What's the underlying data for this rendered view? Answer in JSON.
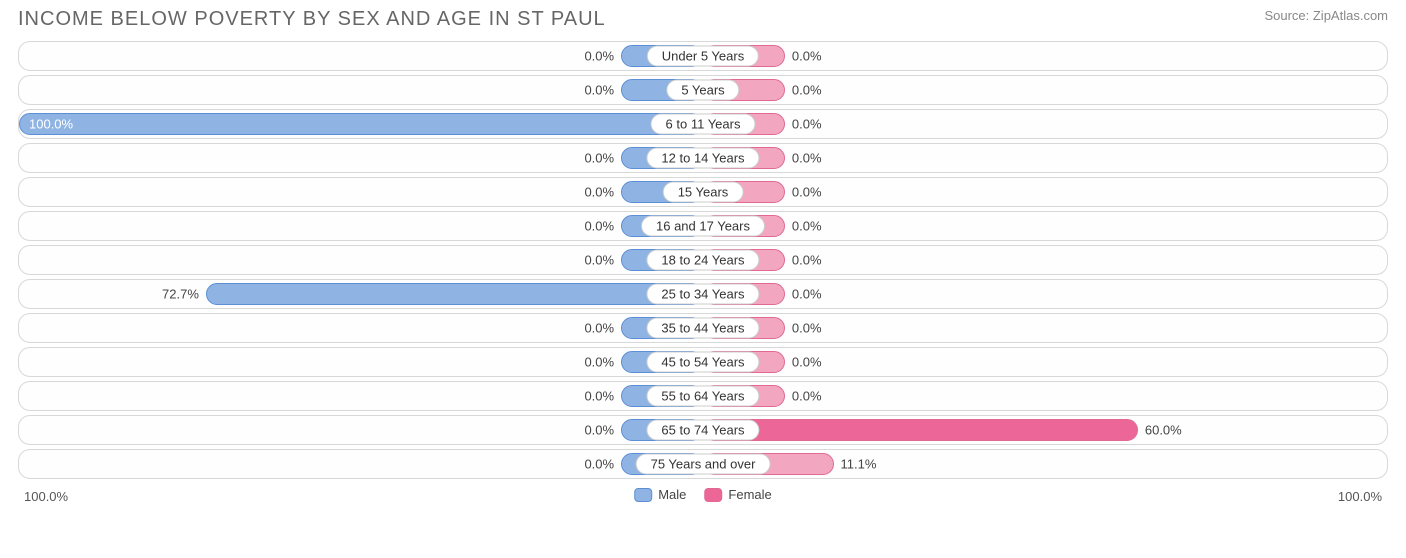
{
  "title": "INCOME BELOW POVERTY BY SEX AND AGE IN ST PAUL",
  "source": "Source: ZipAtlas.com",
  "axis_label_left": "100.0%",
  "axis_label_right": "100.0%",
  "legend": {
    "male": "Male",
    "female": "Female"
  },
  "colors": {
    "male_fill": "#8fb4e3",
    "male_border": "#5a8fd6",
    "female_fill": "#f3a6c0",
    "female_border": "#e06a92",
    "female_highlight": "#ec6698",
    "row_border": "#d8d8d8",
    "text": "#555555",
    "title_text": "#666666"
  },
  "chart": {
    "type": "diverging-bar",
    "default_bar_extent_pct": 12,
    "label_pill_half_width_pct": 9,
    "rows": [
      {
        "category": "Under 5 Years",
        "male": 0.0,
        "female": 0.0
      },
      {
        "category": "5 Years",
        "male": 0.0,
        "female": 0.0
      },
      {
        "category": "6 to 11 Years",
        "male": 100.0,
        "female": 0.0
      },
      {
        "category": "12 to 14 Years",
        "male": 0.0,
        "female": 0.0
      },
      {
        "category": "15 Years",
        "male": 0.0,
        "female": 0.0
      },
      {
        "category": "16 and 17 Years",
        "male": 0.0,
        "female": 0.0
      },
      {
        "category": "18 to 24 Years",
        "male": 0.0,
        "female": 0.0
      },
      {
        "category": "25 to 34 Years",
        "male": 72.7,
        "female": 0.0
      },
      {
        "category": "35 to 44 Years",
        "male": 0.0,
        "female": 0.0
      },
      {
        "category": "45 to 54 Years",
        "male": 0.0,
        "female": 0.0
      },
      {
        "category": "55 to 64 Years",
        "male": 0.0,
        "female": 0.0
      },
      {
        "category": "65 to 74 Years",
        "male": 0.0,
        "female": 60.0
      },
      {
        "category": "75 Years and over",
        "male": 0.0,
        "female": 11.1
      }
    ]
  }
}
